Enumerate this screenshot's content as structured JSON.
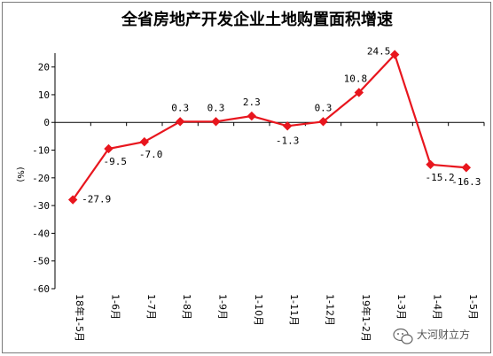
{
  "chart_data": {
    "type": "line",
    "title": "全省房地产开发企业土地购置面积增速",
    "ylabel": "(%)",
    "ylim": [
      -60,
      25
    ],
    "yticks": [
      20,
      10,
      0,
      -10,
      -20,
      -30,
      -40,
      -50,
      -60
    ],
    "categories": [
      "18年1-5月",
      "1-6月",
      "1-7月",
      "1-8月",
      "1-9月",
      "1-10月",
      "1-11月",
      "1-12月",
      "19年1-2月",
      "1-3月",
      "1-4月",
      "1-5月"
    ],
    "series": [
      {
        "values": [
          -27.9,
          -9.5,
          -7.0,
          0.3,
          0.3,
          2.3,
          -1.3,
          0.3,
          10.8,
          24.5,
          -15.2,
          -16.3
        ],
        "data_labels": [
          "-27.9",
          "-9.5",
          "-7.0",
          "0.3",
          "0.3",
          "2.3",
          "-1.3",
          "0.3",
          "10.8",
          "24.5",
          "-15.2",
          "-16.3"
        ],
        "color": "#e8161e"
      }
    ],
    "grid": false,
    "legend": "none"
  },
  "watermark": {
    "icon": "wechat-icon",
    "text": "大河财立方"
  }
}
